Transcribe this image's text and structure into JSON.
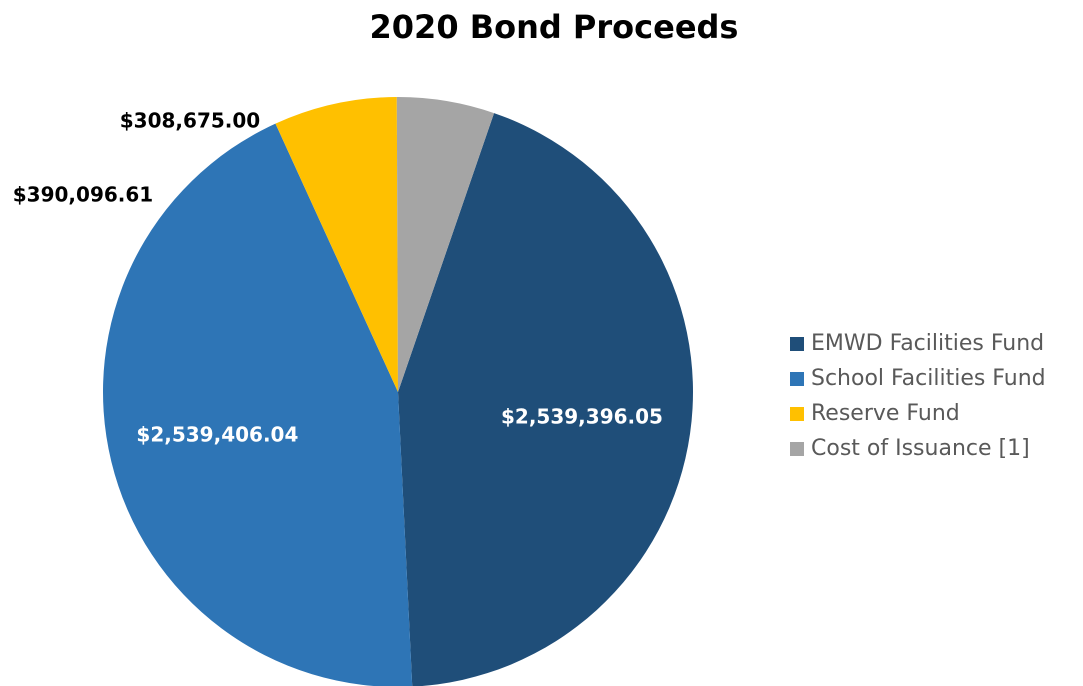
{
  "chart_data": {
    "type": "pie",
    "title": "2020 Bond Proceeds",
    "slices": [
      {
        "name": "EMWD Facilities Fund",
        "value": 2539396.05,
        "label": "$2,539,396.05",
        "color": "#1F4E79",
        "label_color": "#ffffff",
        "label_placement": "inside"
      },
      {
        "name": "School Facilities Fund",
        "value": 2539406.04,
        "label": "$2,539,406.04",
        "color": "#2E75B6",
        "label_color": "#ffffff",
        "label_placement": "inside"
      },
      {
        "name": "Reserve Fund",
        "value": 390096.61,
        "label": "$390,096.61",
        "color": "#FFC000",
        "label_color": "#000000",
        "label_placement": "outside"
      },
      {
        "name": "Cost of Issuance [1]",
        "value": 308675.0,
        "label": "$308,675.00",
        "color": "#A5A5A5",
        "label_color": "#000000",
        "label_placement": "outside"
      }
    ],
    "start_angle_deg": 19,
    "direction": "clockwise",
    "legend": "right"
  }
}
